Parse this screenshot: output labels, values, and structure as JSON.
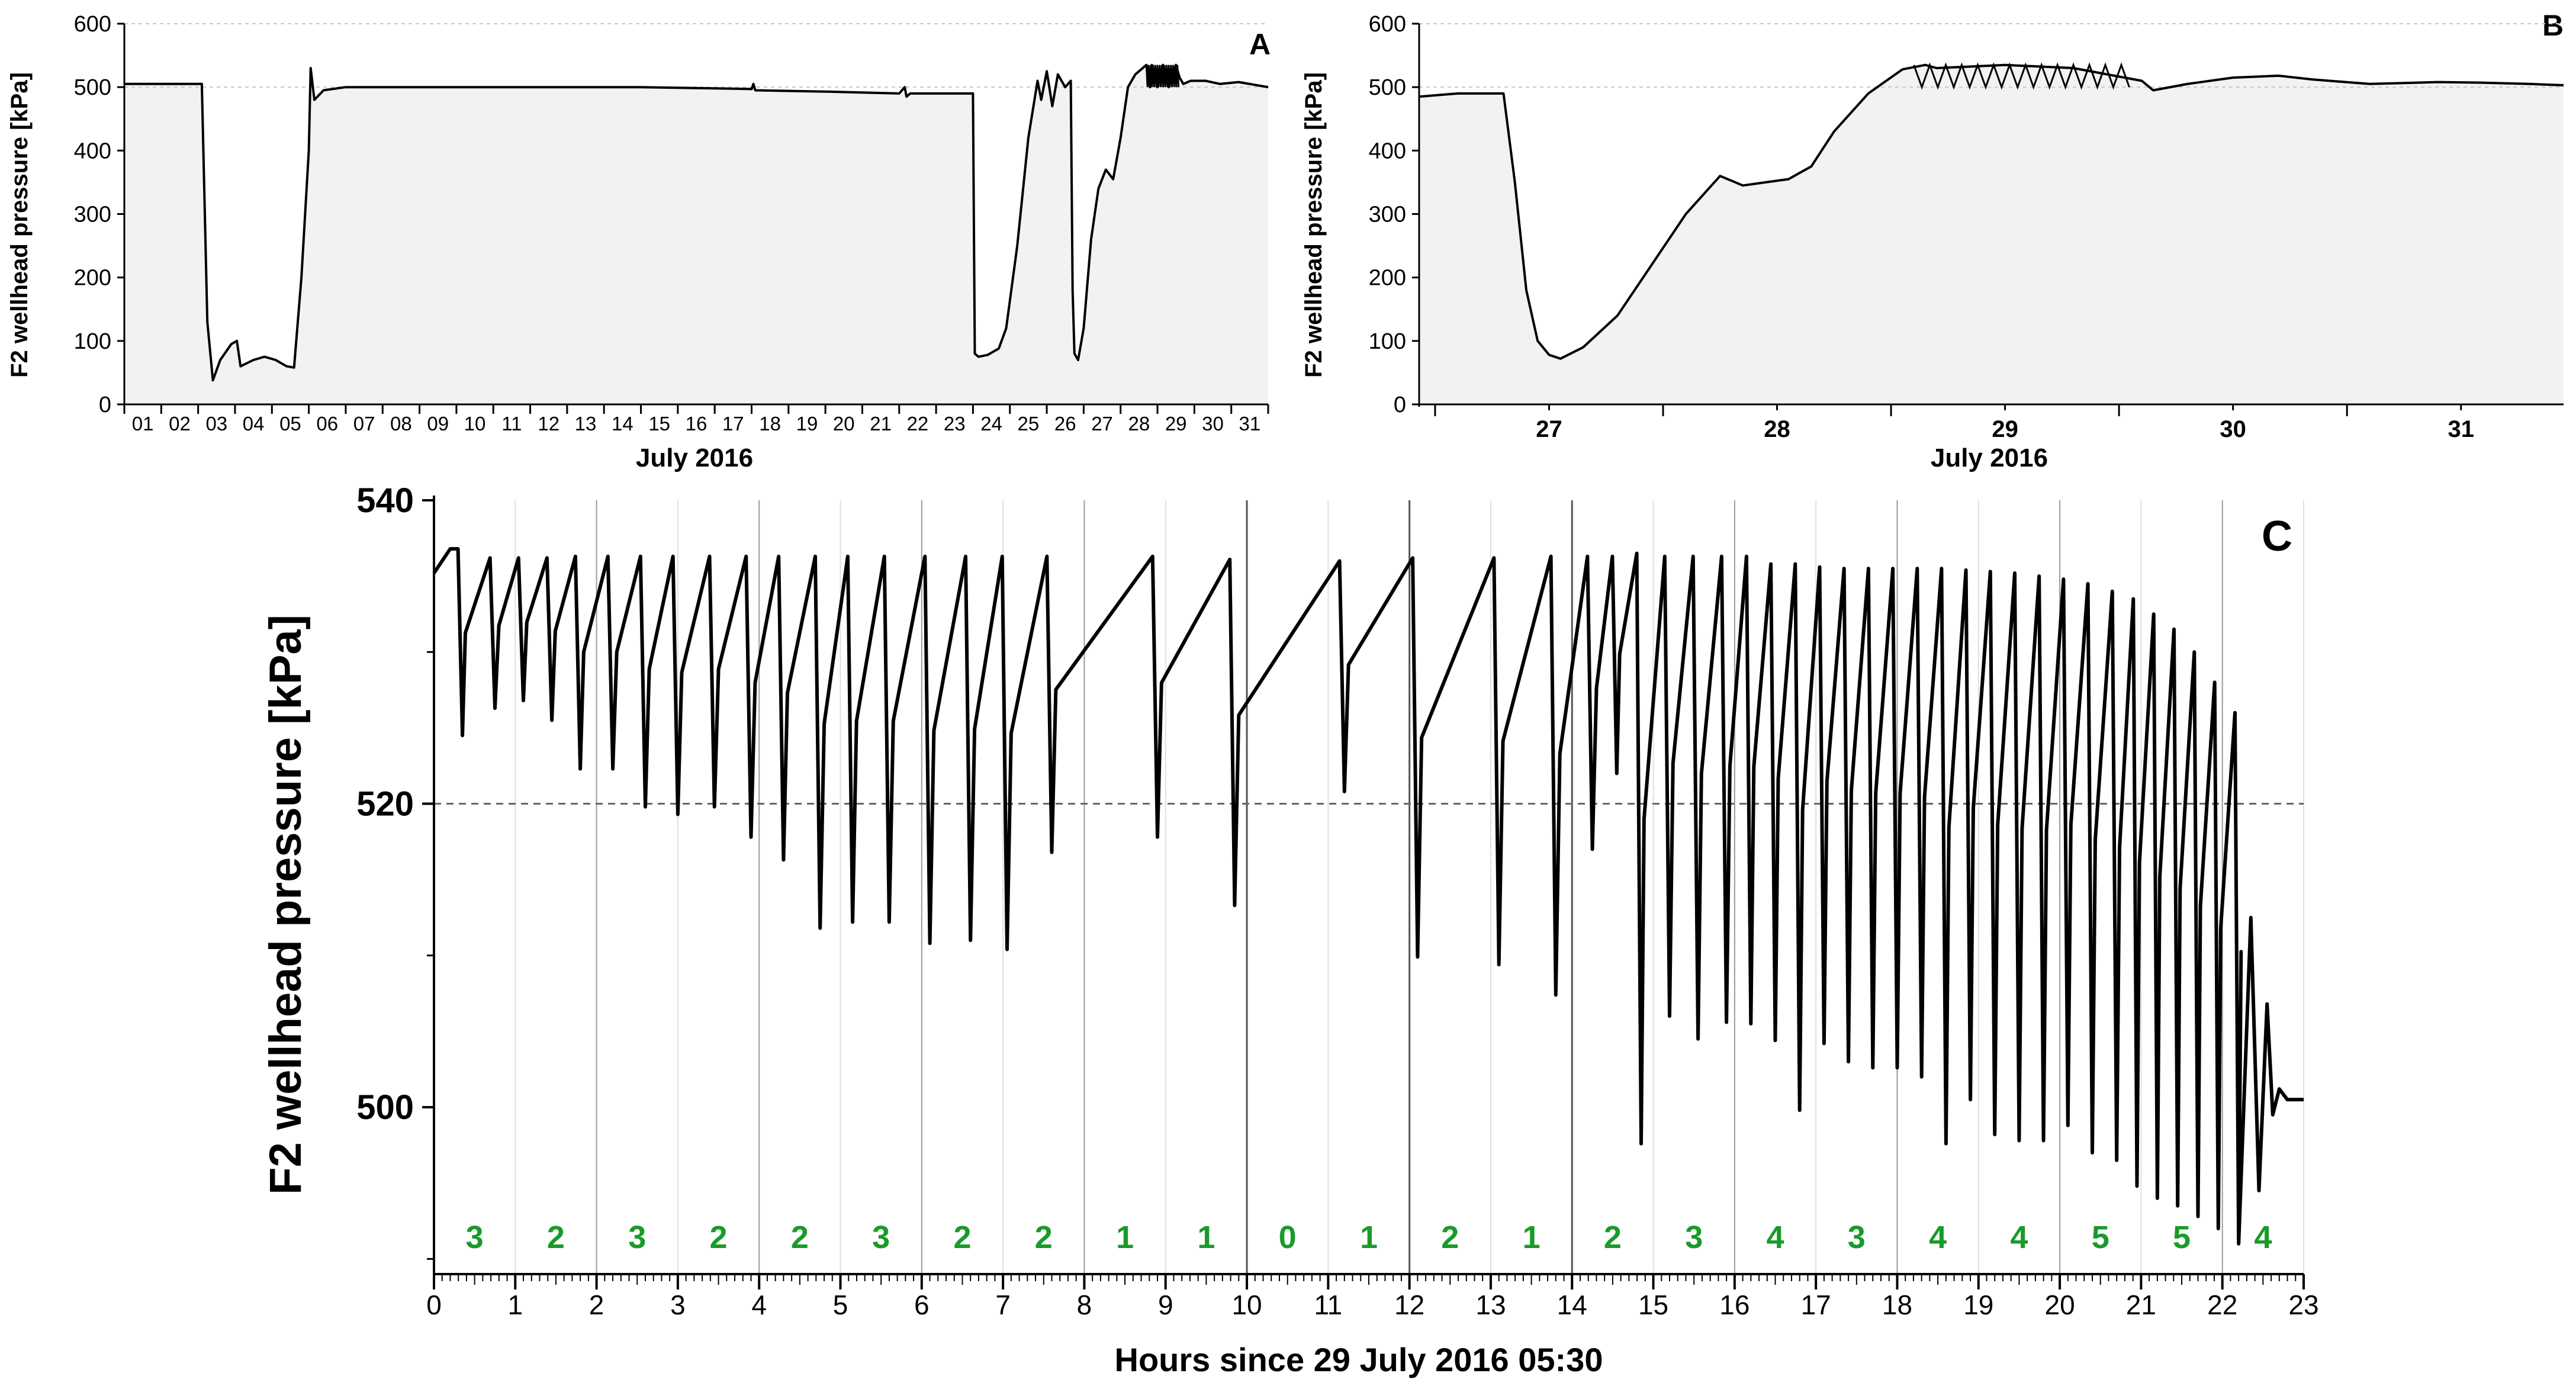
{
  "chart_data": [
    {
      "panel": "A",
      "type": "area",
      "ylabel": "F2 wellhead pressure [kPa]",
      "xlabel": "July 2016",
      "ylim": [
        0,
        600
      ],
      "yticks": [
        0,
        100,
        200,
        300,
        400,
        500,
        600
      ],
      "xlim": [
        1,
        32
      ],
      "xtick_labels": [
        "01",
        "02",
        "03",
        "04",
        "05",
        "06",
        "07",
        "08",
        "09",
        "10",
        "11",
        "12",
        "13",
        "14",
        "15",
        "16",
        "17",
        "18",
        "19",
        "20",
        "21",
        "22",
        "23",
        "24",
        "25",
        "26",
        "27",
        "28",
        "29",
        "30",
        "31"
      ],
      "grid": "dashed horizontal at 500 and 600",
      "series": [
        {
          "name": "F2 wellhead pressure",
          "x": [
            1,
            3.0,
            3.1,
            3.25,
            3.4,
            3.6,
            3.9,
            4.05,
            4.15,
            4.5,
            4.8,
            5.1,
            5.4,
            5.6,
            5.8,
            6.0,
            6.05,
            6.15,
            6.4,
            7,
            9,
            11,
            13,
            15,
            17,
            18.0,
            18.05,
            18.1,
            20,
            22,
            22.15,
            22.2,
            22.3,
            24.0,
            24.05,
            24.15,
            24.4,
            24.7,
            24.9,
            25.2,
            25.5,
            25.75,
            25.85,
            26.0,
            26.15,
            26.3,
            26.5,
            26.65,
            26.7,
            26.75,
            26.85,
            27.0,
            27.2,
            27.4,
            27.6,
            27.8,
            28.0,
            28.2,
            28.4,
            28.7,
            28.8,
            28.85,
            29.0,
            29.15,
            29.3,
            29.5,
            29.6,
            29.7,
            29.9,
            30.3,
            30.7,
            31.2,
            32
          ],
          "y": [
            505,
            505,
            505,
            130,
            38,
            70,
            95,
            100,
            60,
            70,
            75,
            70,
            60,
            58,
            200,
            400,
            530,
            480,
            495,
            500,
            500,
            500,
            500,
            500,
            498,
            497,
            505,
            495,
            493,
            490,
            500,
            485,
            490,
            490,
            80,
            75,
            78,
            88,
            120,
            250,
            420,
            510,
            480,
            525,
            470,
            520,
            500,
            510,
            180,
            80,
            70,
            120,
            260,
            340,
            370,
            355,
            420,
            500,
            520,
            535,
            500,
            535,
            500,
            535,
            500,
            535,
            515,
            505,
            510,
            510,
            505,
            508,
            500
          ]
        }
      ]
    },
    {
      "panel": "B",
      "type": "area",
      "ylabel": "F2 wellhead pressure [kPa]",
      "xlabel": "July 2016",
      "ylim": [
        0,
        600
      ],
      "yticks": [
        0,
        100,
        200,
        300,
        400,
        500,
        600
      ],
      "xlim": [
        26.43,
        31.45
      ],
      "xtick_labels": [
        "27",
        "28",
        "29",
        "30",
        "31"
      ],
      "grid": "dashed horizontal at 500 and 600",
      "series": [
        {
          "name": "F2 wellhead pressure",
          "x": [
            26.43,
            26.6,
            26.8,
            26.85,
            26.9,
            26.95,
            27.0,
            27.05,
            27.15,
            27.3,
            27.45,
            27.6,
            27.75,
            27.85,
            27.95,
            28.05,
            28.15,
            28.25,
            28.4,
            28.55,
            28.65,
            28.7,
            29.0,
            29.3,
            29.6,
            29.65,
            29.8,
            30.0,
            30.2,
            30.35,
            30.6,
            30.9,
            31.1,
            31.3,
            31.45
          ],
          "y": [
            485,
            490,
            490,
            350,
            180,
            100,
            78,
            72,
            90,
            140,
            220,
            300,
            360,
            345,
            350,
            355,
            375,
            430,
            490,
            528,
            535,
            530,
            535,
            530,
            510,
            495,
            505,
            515,
            518,
            512,
            505,
            508,
            507,
            505,
            503
          ]
        }
      ]
    },
    {
      "panel": "C",
      "type": "line",
      "ylabel": "F2 wellhead pressure [kPa]",
      "xlabel": "Hours since 29 July 2016 05:30",
      "ylim": [
        489,
        540
      ],
      "yticks_major": [
        500,
        520,
        540
      ],
      "yticks_minor": [
        490,
        510,
        530
      ],
      "xlim": [
        0,
        23
      ],
      "xticks": [
        0,
        1,
        2,
        3,
        4,
        5,
        6,
        7,
        8,
        9,
        10,
        11,
        12,
        13,
        14,
        15,
        16,
        17,
        18,
        19,
        20,
        21,
        22,
        23
      ],
      "reference_line": 520,
      "cycles": [
        {
          "t": 0.35,
          "peak": 536.8,
          "trough": 524.5
        },
        {
          "t": 0.75,
          "peak": 536.2,
          "trough": 526.3
        },
        {
          "t": 1.1,
          "peak": 536.2,
          "trough": 526.8
        },
        {
          "t": 1.45,
          "peak": 536.2,
          "trough": 525.5
        },
        {
          "t": 1.8,
          "peak": 536.3,
          "trough": 522.3
        },
        {
          "t": 2.2,
          "peak": 536.3,
          "trough": 522.3
        },
        {
          "t": 2.6,
          "peak": 536.3,
          "trough": 519.8
        },
        {
          "t": 3.0,
          "peak": 536.3,
          "trough": 519.3
        },
        {
          "t": 3.45,
          "peak": 536.3,
          "trough": 519.8
        },
        {
          "t": 3.9,
          "peak": 536.3,
          "trough": 517.8
        },
        {
          "t": 4.3,
          "peak": 536.3,
          "trough": 516.3
        },
        {
          "t": 4.75,
          "peak": 536.3,
          "trough": 511.8
        },
        {
          "t": 5.15,
          "peak": 536.3,
          "trough": 512.2
        },
        {
          "t": 5.6,
          "peak": 536.3,
          "trough": 512.2
        },
        {
          "t": 6.1,
          "peak": 536.3,
          "trough": 510.8
        },
        {
          "t": 6.6,
          "peak": 536.3,
          "trough": 511.0
        },
        {
          "t": 7.05,
          "peak": 536.3,
          "trough": 510.4
        },
        {
          "t": 7.6,
          "peak": 536.3,
          "trough": 516.8
        },
        {
          "t": 8.9,
          "peak": 536.3,
          "trough": 517.8
        },
        {
          "t": 9.85,
          "peak": 536.1,
          "trough": 513.3
        },
        {
          "t": 11.2,
          "peak": 536.0,
          "trough": 520.8
        },
        {
          "t": 12.1,
          "peak": 536.2,
          "trough": 509.9
        },
        {
          "t": 13.1,
          "peak": 536.2,
          "trough": 509.4
        },
        {
          "t": 13.8,
          "peak": 536.3,
          "trough": 507.4
        },
        {
          "t": 14.25,
          "peak": 536.3,
          "trough": 517.0
        },
        {
          "t": 14.55,
          "peak": 536.3,
          "trough": 522.0
        },
        {
          "t": 14.85,
          "peak": 536.5,
          "trough": 497.6
        },
        {
          "t": 15.2,
          "peak": 536.3,
          "trough": 506.0
        },
        {
          "t": 15.55,
          "peak": 536.3,
          "trough": 504.5
        },
        {
          "t": 15.9,
          "peak": 536.3,
          "trough": 505.6
        },
        {
          "t": 16.2,
          "peak": 536.3,
          "trough": 505.5
        },
        {
          "t": 16.5,
          "peak": 535.8,
          "trough": 504.4
        },
        {
          "t": 16.8,
          "peak": 535.8,
          "trough": 499.8
        },
        {
          "t": 17.1,
          "peak": 535.6,
          "trough": 504.2
        },
        {
          "t": 17.4,
          "peak": 535.5,
          "trough": 503.0
        },
        {
          "t": 17.7,
          "peak": 535.5,
          "trough": 502.6
        },
        {
          "t": 18.0,
          "peak": 535.5,
          "trough": 502.6
        },
        {
          "t": 18.3,
          "peak": 535.5,
          "trough": 502.0
        },
        {
          "t": 18.6,
          "peak": 535.5,
          "trough": 497.6
        },
        {
          "t": 18.9,
          "peak": 535.4,
          "trough": 500.5
        },
        {
          "t": 19.2,
          "peak": 535.3,
          "trough": 498.2
        },
        {
          "t": 19.5,
          "peak": 535.2,
          "trough": 497.8
        },
        {
          "t": 19.8,
          "peak": 535.0,
          "trough": 497.8
        },
        {
          "t": 20.1,
          "peak": 534.8,
          "trough": 498.8
        },
        {
          "t": 20.4,
          "peak": 534.5,
          "trough": 497.0
        },
        {
          "t": 20.7,
          "peak": 534.0,
          "trough": 496.5
        },
        {
          "t": 20.95,
          "peak": 533.5,
          "trough": 494.8
        },
        {
          "t": 21.2,
          "peak": 532.5,
          "trough": 494.0
        },
        {
          "t": 21.45,
          "peak": 531.5,
          "trough": 493.5
        },
        {
          "t": 21.7,
          "peak": 530.0,
          "trough": 492.8
        },
        {
          "t": 21.95,
          "peak": 528.0,
          "trough": 492.0
        },
        {
          "t": 22.2,
          "peak": 526.0,
          "trough": 491.0
        }
      ],
      "tail": {
        "x": [
          22.2,
          22.35,
          22.45,
          22.55,
          22.62,
          22.7,
          22.8,
          23.0
        ],
        "y": [
          491.0,
          512.5,
          494.5,
          506.8,
          499.5,
          501.2,
          500.5,
          500.5
        ]
      },
      "gas_counts": {
        "x": [
          0.5,
          1.5,
          2.5,
          3.5,
          4.5,
          5.5,
          6.5,
          7.5,
          8.5,
          9.5,
          10.5,
          11.5,
          12.5,
          13.5,
          14.5,
          15.5,
          16.5,
          17.5,
          18.5,
          19.5,
          20.5,
          21.5,
          22.5
        ],
        "labels": [
          "3",
          "2",
          "3",
          "2",
          "2",
          "3",
          "2",
          "2",
          "1",
          "1",
          "0",
          "1",
          "2",
          "1",
          "2",
          "3",
          "4",
          "3",
          "4",
          "4",
          "5",
          "5",
          "4"
        ]
      }
    }
  ],
  "panels": {
    "A": {
      "letter": "A",
      "ylabel": "F2 wellhead pressure [kPa]",
      "xlabel": "July 2016"
    },
    "B": {
      "letter": "B",
      "ylabel": "F2 wellhead pressure [kPa]",
      "xlabel": "July 2016"
    },
    "C": {
      "letter": "C",
      "ylabel": "F2 wellhead pressure [kPa]",
      "xlabel": "Hours since 29 July 2016 05:30"
    }
  },
  "colors": {
    "line": "#000000",
    "fill": "#f2f2f2",
    "gas_text": "#1a9a2a",
    "grid": "#c8c8c8"
  }
}
